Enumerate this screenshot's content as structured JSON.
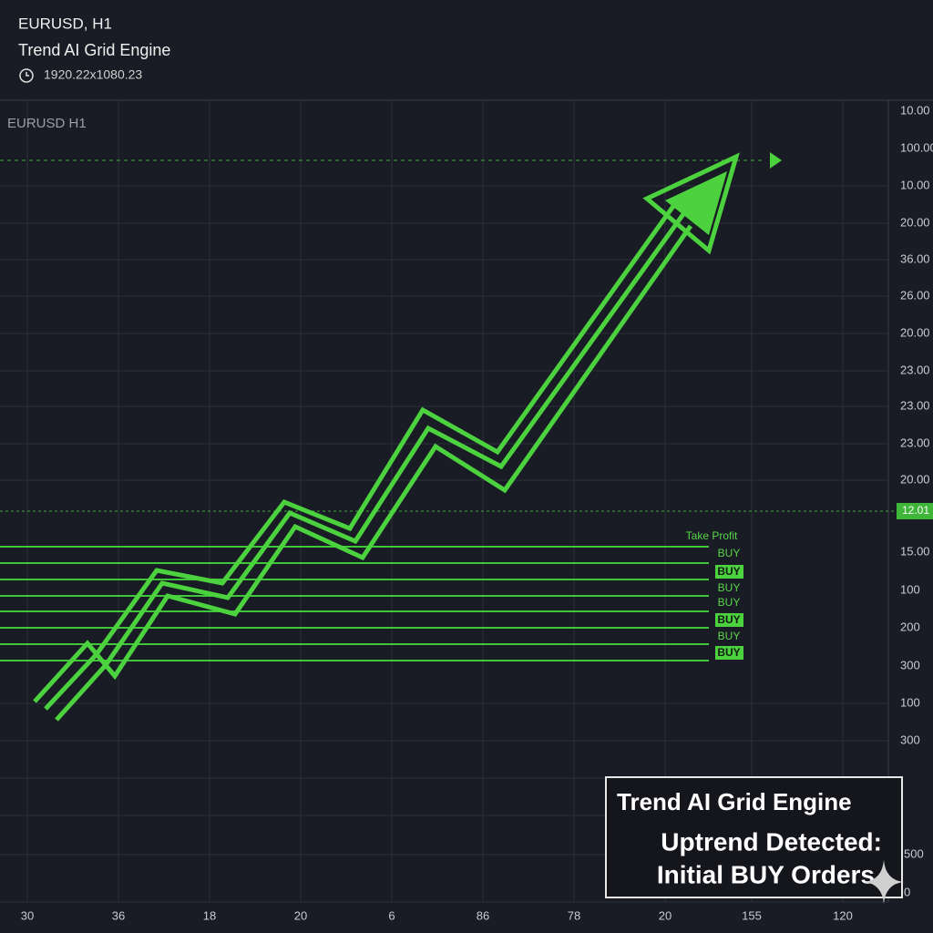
{
  "header": {
    "symbol": "EURUSD, H1",
    "engine": "Trend AI Grid Engine",
    "resolution": "1920.22x1080.23"
  },
  "chart": {
    "label": "EURUSD H1",
    "y_labels": [
      "10.00",
      "100.00",
      "10.00",
      "20.00",
      "36.00",
      "26.00",
      "20.00",
      "23.00",
      "23.00",
      "23.00",
      "20.00",
      "12.01",
      "15.00",
      "100",
      "200",
      "300",
      "100",
      "300",
      "500",
      "0"
    ],
    "x_labels": [
      "30",
      "36",
      "18",
      "20",
      "6",
      "86",
      "78",
      "20",
      "155",
      "120"
    ],
    "orders": {
      "take_profit": "Take Profit",
      "buy": [
        "BUY",
        "BUY",
        "BUY",
        "BUY",
        "BUY",
        "BUY",
        "BUY"
      ]
    }
  },
  "panel": {
    "title": "Trend AI Grid Engine",
    "line1": "Uptrend Detected:",
    "line2": "Initial BUY Orders"
  }
}
